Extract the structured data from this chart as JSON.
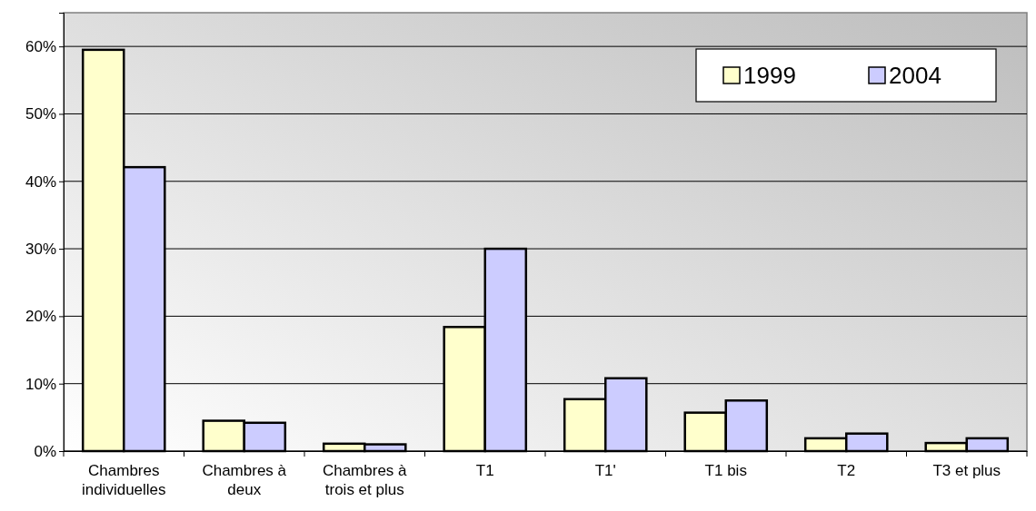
{
  "chart_data": {
    "type": "bar",
    "categories": [
      "Chambres individuelles",
      "Chambres à deux",
      "Chambres à trois et plus",
      "T1",
      "T1'",
      "T1 bis",
      "T2",
      "T3 et plus"
    ],
    "series": [
      {
        "name": "1999",
        "color": "#ffffcc",
        "values": [
          59.5,
          4.5,
          1.1,
          18.4,
          7.7,
          5.7,
          1.9,
          1.2
        ]
      },
      {
        "name": "2004",
        "color": "#ccccff",
        "values": [
          42.1,
          4.2,
          1.0,
          30.0,
          10.8,
          7.5,
          2.6,
          1.9
        ]
      }
    ],
    "ylim": [
      0,
      65
    ],
    "yticks": [
      {
        "value": 0,
        "label": "0%"
      },
      {
        "value": 10,
        "label": "10%"
      },
      {
        "value": 20,
        "label": "20%"
      },
      {
        "value": 30,
        "label": "30%"
      },
      {
        "value": 40,
        "label": "40%"
      },
      {
        "value": 50,
        "label": "50%"
      },
      {
        "value": 60,
        "label": "60%"
      }
    ],
    "grid": "y",
    "legend": "top right"
  }
}
